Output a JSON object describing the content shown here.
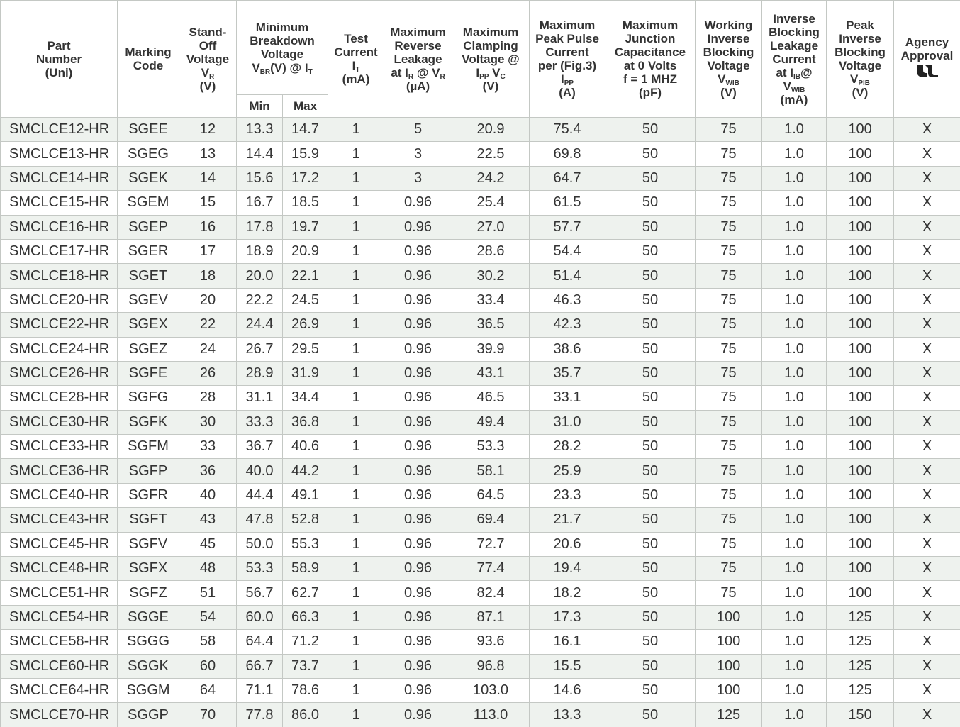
{
  "table": {
    "headers": [
      [
        [
          "Part"
        ],
        [
          "Number"
        ],
        [
          "(Uni)"
        ]
      ],
      [
        [
          "Marking"
        ],
        [
          "Code"
        ]
      ],
      [
        [
          "Stand-"
        ],
        [
          "Off"
        ],
        [
          "Voltage"
        ],
        [
          "V",
          {
            "sub": "R"
          }
        ],
        [
          "(V)"
        ]
      ],
      [
        [
          "Minimum"
        ],
        [
          "Breakdown"
        ],
        [
          "Voltage"
        ],
        [
          "V",
          {
            "sub": "BR"
          },
          "(V)  @ I",
          {
            "sub": "T"
          }
        ]
      ],
      [
        [
          "Test"
        ],
        [
          "Current"
        ],
        [
          "I",
          {
            "sub": "T"
          }
        ],
        [
          "(mA)"
        ]
      ],
      [
        [
          "Maximum"
        ],
        [
          "Reverse"
        ],
        [
          "Leakage"
        ],
        [
          "at I",
          {
            "sub": "R"
          },
          " @ V",
          {
            "sub": "R"
          }
        ],
        [
          "(µA)"
        ]
      ],
      [
        [
          "Maximum"
        ],
        [
          "Clamping"
        ],
        [
          "Voltage @"
        ],
        [
          "I",
          {
            "sub": "PP"
          },
          " V",
          {
            "sub": "C"
          }
        ],
        [
          "(V)"
        ]
      ],
      [
        [
          "Maximum"
        ],
        [
          "Peak Pulse"
        ],
        [
          "Current"
        ],
        [
          "per (Fig.3)"
        ],
        [
          "I",
          {
            "sub": "PP"
          }
        ],
        [
          "(A)"
        ]
      ],
      [
        [
          "Maximum"
        ],
        [
          "Junction"
        ],
        [
          "Capacitance"
        ],
        [
          "at 0  Volts"
        ],
        [
          "f = 1 MHZ"
        ],
        [
          "(pF)"
        ]
      ],
      [
        [
          "Working"
        ],
        [
          "Inverse"
        ],
        [
          "Blocking"
        ],
        [
          "Voltage"
        ],
        [
          "V",
          {
            "sub": "WIB"
          }
        ],
        [
          "(V)"
        ]
      ],
      [
        [
          "Inverse"
        ],
        [
          "Blocking"
        ],
        [
          "Leakage"
        ],
        [
          "Current"
        ],
        [
          "at I",
          {
            "sub": "IB"
          },
          "@"
        ],
        [
          "V",
          {
            "sub": "WIB"
          }
        ],
        [
          "(mA)"
        ]
      ],
      [
        [
          "Peak"
        ],
        [
          "Inverse"
        ],
        [
          "Blocking"
        ],
        [
          "Voltage"
        ],
        [
          "V",
          {
            "sub": "PIB"
          }
        ],
        [
          "(V)"
        ]
      ],
      [
        [
          "Agency"
        ],
        [
          "Approval"
        ]
      ]
    ],
    "subheaders": [
      "Min",
      "Max"
    ],
    "rows": [
      [
        "SMCLCE12-HR",
        "SGEE",
        "12",
        "13.3",
        "14.7",
        "1",
        "5",
        "20.9",
        "75.4",
        "50",
        "75",
        "1.0",
        "100",
        "X"
      ],
      [
        "SMCLCE13-HR",
        "SGEG",
        "13",
        "14.4",
        "15.9",
        "1",
        "3",
        "22.5",
        "69.8",
        "50",
        "75",
        "1.0",
        "100",
        "X"
      ],
      [
        "SMCLCE14-HR",
        "SGEK",
        "14",
        "15.6",
        "17.2",
        "1",
        "3",
        "24.2",
        "64.7",
        "50",
        "75",
        "1.0",
        "100",
        "X"
      ],
      [
        "SMCLCE15-HR",
        "SGEM",
        "15",
        "16.7",
        "18.5",
        "1",
        "0.96",
        "25.4",
        "61.5",
        "50",
        "75",
        "1.0",
        "100",
        "X"
      ],
      [
        "SMCLCE16-HR",
        "SGEP",
        "16",
        "17.8",
        "19.7",
        "1",
        "0.96",
        "27.0",
        "57.7",
        "50",
        "75",
        "1.0",
        "100",
        "X"
      ],
      [
        "SMCLCE17-HR",
        "SGER",
        "17",
        "18.9",
        "20.9",
        "1",
        "0.96",
        "28.6",
        "54.4",
        "50",
        "75",
        "1.0",
        "100",
        "X"
      ],
      [
        "SMCLCE18-HR",
        "SGET",
        "18",
        "20.0",
        "22.1",
        "1",
        "0.96",
        "30.2",
        "51.4",
        "50",
        "75",
        "1.0",
        "100",
        "X"
      ],
      [
        "SMCLCE20-HR",
        "SGEV",
        "20",
        "22.2",
        "24.5",
        "1",
        "0.96",
        "33.4",
        "46.3",
        "50",
        "75",
        "1.0",
        "100",
        "X"
      ],
      [
        "SMCLCE22-HR",
        "SGEX",
        "22",
        "24.4",
        "26.9",
        "1",
        "0.96",
        "36.5",
        "42.3",
        "50",
        "75",
        "1.0",
        "100",
        "X"
      ],
      [
        "SMCLCE24-HR",
        "SGEZ",
        "24",
        "26.7",
        "29.5",
        "1",
        "0.96",
        "39.9",
        "38.6",
        "50",
        "75",
        "1.0",
        "100",
        "X"
      ],
      [
        "SMCLCE26-HR",
        "SGFE",
        "26",
        "28.9",
        "31.9",
        "1",
        "0.96",
        "43.1",
        "35.7",
        "50",
        "75",
        "1.0",
        "100",
        "X"
      ],
      [
        "SMCLCE28-HR",
        "SGFG",
        "28",
        "31.1",
        "34.4",
        "1",
        "0.96",
        "46.5",
        "33.1",
        "50",
        "75",
        "1.0",
        "100",
        "X"
      ],
      [
        "SMCLCE30-HR",
        "SGFK",
        "30",
        "33.3",
        "36.8",
        "1",
        "0.96",
        "49.4",
        "31.0",
        "50",
        "75",
        "1.0",
        "100",
        "X"
      ],
      [
        "SMCLCE33-HR",
        "SGFM",
        "33",
        "36.7",
        "40.6",
        "1",
        "0.96",
        "53.3",
        "28.2",
        "50",
        "75",
        "1.0",
        "100",
        "X"
      ],
      [
        "SMCLCE36-HR",
        "SGFP",
        "36",
        "40.0",
        "44.2",
        "1",
        "0.96",
        "58.1",
        "25.9",
        "50",
        "75",
        "1.0",
        "100",
        "X"
      ],
      [
        "SMCLCE40-HR",
        "SGFR",
        "40",
        "44.4",
        "49.1",
        "1",
        "0.96",
        "64.5",
        "23.3",
        "50",
        "75",
        "1.0",
        "100",
        "X"
      ],
      [
        "SMCLCE43-HR",
        "SGFT",
        "43",
        "47.8",
        "52.8",
        "1",
        "0.96",
        "69.4",
        "21.7",
        "50",
        "75",
        "1.0",
        "100",
        "X"
      ],
      [
        "SMCLCE45-HR",
        "SGFV",
        "45",
        "50.0",
        "55.3",
        "1",
        "0.96",
        "72.7",
        "20.6",
        "50",
        "75",
        "1.0",
        "100",
        "X"
      ],
      [
        "SMCLCE48-HR",
        "SGFX",
        "48",
        "53.3",
        "58.9",
        "1",
        "0.96",
        "77.4",
        "19.4",
        "50",
        "75",
        "1.0",
        "100",
        "X"
      ],
      [
        "SMCLCE51-HR",
        "SGFZ",
        "51",
        "56.7",
        "62.7",
        "1",
        "0.96",
        "82.4",
        "18.2",
        "50",
        "75",
        "1.0",
        "100",
        "X"
      ],
      [
        "SMCLCE54-HR",
        "SGGE",
        "54",
        "60.0",
        "66.3",
        "1",
        "0.96",
        "87.1",
        "17.3",
        "50",
        "100",
        "1.0",
        "125",
        "X"
      ],
      [
        "SMCLCE58-HR",
        "SGGG",
        "58",
        "64.4",
        "71.2",
        "1",
        "0.96",
        "93.6",
        "16.1",
        "50",
        "100",
        "1.0",
        "125",
        "X"
      ],
      [
        "SMCLCE60-HR",
        "SGGK",
        "60",
        "66.7",
        "73.7",
        "1",
        "0.96",
        "96.8",
        "15.5",
        "50",
        "100",
        "1.0",
        "125",
        "X"
      ],
      [
        "SMCLCE64-HR",
        "SGGM",
        "64",
        "71.1",
        "78.6",
        "1",
        "0.96",
        "103.0",
        "14.6",
        "50",
        "100",
        "1.0",
        "125",
        "X"
      ],
      [
        "SMCLCE70-HR",
        "SGGP",
        "70",
        "77.8",
        "86.0",
        "1",
        "0.96",
        "113.0",
        "13.3",
        "50",
        "125",
        "1.0",
        "150",
        "X"
      ]
    ]
  }
}
